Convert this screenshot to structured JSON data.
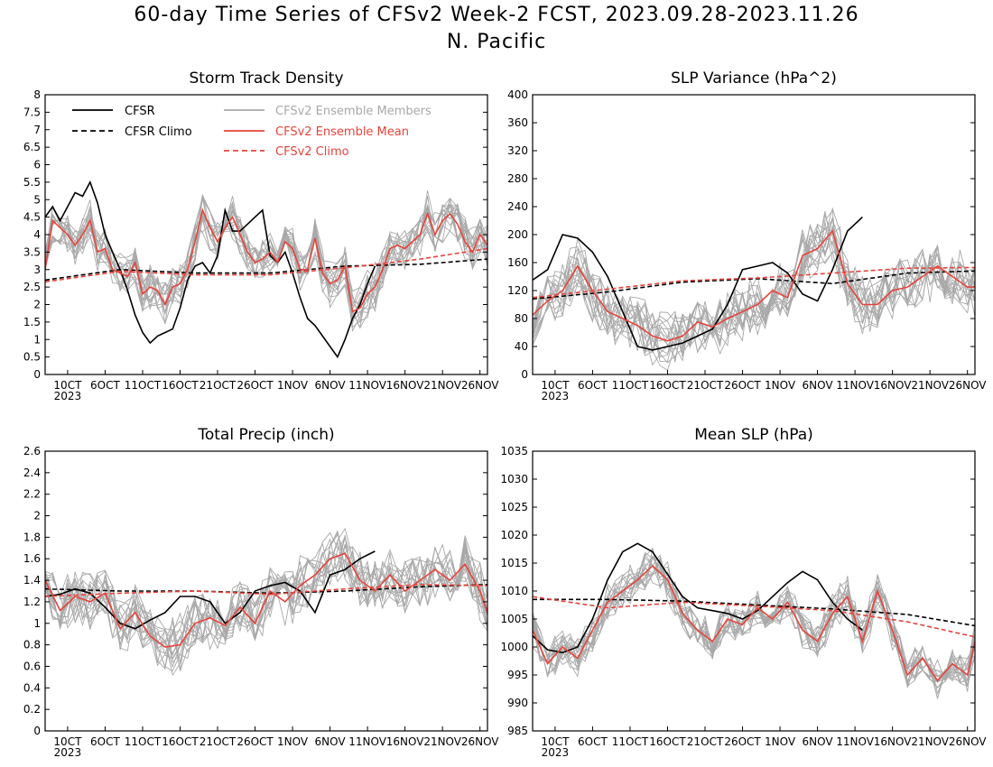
{
  "figure": {
    "title_line1": "60-day Time Series of CFSv2 Week-2 FCST, 2023.09.28-2023.11.26",
    "title_line2": "N. Pacific"
  },
  "colors": {
    "cfsr": "#000000",
    "cfsr_climo": "#000000",
    "ensemble_members": "#a8a8a8",
    "ensemble_mean": "#e8433a",
    "cfsv2_climo": "#e8433a"
  },
  "legend": {
    "cfsr": "CFSR",
    "cfsr_climo": "CFSR Climo",
    "members": "CFSv2 Ensemble Members",
    "ens_mean": "CFSv2 Ensemble Mean",
    "cfsv2_climo": "CFSv2 Climo"
  },
  "chart_data": [
    {
      "type": "line",
      "title": "Storm Track Density",
      "ylim": [
        0,
        8
      ],
      "yticks": [
        "0",
        "0.5",
        "1",
        "1.5",
        "2",
        "2.5",
        "3",
        "3.5",
        "4",
        "4.5",
        "5",
        "5.5",
        "6",
        "6.5",
        "7",
        "7.5",
        "8"
      ],
      "xticks": [
        "10CT",
        "6OCT",
        "11OCT",
        "16OCT",
        "21OCT",
        "26OCT",
        "1NOV",
        "6NOV",
        "11NOV",
        "16NOV",
        "21NOV",
        "26NOV"
      ],
      "year_label": "2023",
      "series": [
        {
          "name": "CFSR",
          "x": [
            0,
            1,
            2,
            3,
            4,
            5,
            6,
            7,
            8,
            9,
            10,
            11,
            12,
            13,
            14,
            15,
            16,
            17,
            18,
            19,
            20,
            21,
            22,
            23,
            24,
            25,
            26,
            27,
            28,
            29,
            30,
            31,
            32,
            33,
            34,
            35,
            36,
            37,
            38,
            39,
            40,
            41,
            42,
            43,
            44
          ],
          "values": [
            4.5,
            4.8,
            4.4,
            4.8,
            5.2,
            5.1,
            5.5,
            4.9,
            4.0,
            3.5,
            3.0,
            2.4,
            1.7,
            1.2,
            0.9,
            1.1,
            1.2,
            1.3,
            1.9,
            2.7,
            3.1,
            3.2,
            2.9,
            3.4,
            4.7,
            4.1,
            4.1,
            4.3,
            4.5,
            4.7,
            3.4,
            3.2,
            3.5,
            2.9,
            2.2,
            1.6,
            1.4,
            1.1,
            0.8,
            0.5,
            1.0,
            1.6,
            2.0,
            2.6,
            3.1
          ]
        },
        {
          "name": "CFSR Climo",
          "x": [
            0,
            10,
            20,
            30,
            40,
            50,
            59
          ],
          "values": [
            2.7,
            3.0,
            2.9,
            2.9,
            3.1,
            3.15,
            3.3
          ]
        },
        {
          "name": "CFSv2 Ensemble Mean",
          "x": [
            0,
            1,
            2,
            3,
            4,
            5,
            6,
            7,
            8,
            9,
            10,
            11,
            12,
            13,
            14,
            15,
            16,
            17,
            18,
            19,
            20,
            21,
            22,
            23,
            24,
            25,
            26,
            27,
            28,
            29,
            30,
            31,
            32,
            33,
            34,
            35,
            36,
            37,
            38,
            39,
            40,
            41,
            42,
            43,
            44,
            45,
            46,
            47,
            48,
            49,
            50,
            51,
            52,
            53,
            54,
            55,
            56,
            57,
            58,
            59
          ],
          "values": [
            3.0,
            4.4,
            4.2,
            4.0,
            3.7,
            4.0,
            4.4,
            3.5,
            3.6,
            3.0,
            2.9,
            2.8,
            3.2,
            2.3,
            2.5,
            2.4,
            2.0,
            2.5,
            2.6,
            3.0,
            3.8,
            4.7,
            4.2,
            3.8,
            4.2,
            4.5,
            4.0,
            3.5,
            3.2,
            3.3,
            3.5,
            3.2,
            3.8,
            3.6,
            3.0,
            3.0,
            3.9,
            2.9,
            2.6,
            2.7,
            3.1,
            1.8,
            1.9,
            2.3,
            2.5,
            3.0,
            3.6,
            3.7,
            3.6,
            3.8,
            4.0,
            4.6,
            4.0,
            4.4,
            4.6,
            4.3,
            3.8,
            3.5,
            4.0,
            3.7
          ]
        },
        {
          "name": "CFSv2 Climo",
          "x": [
            0,
            10,
            20,
            30,
            40,
            50,
            59
          ],
          "values": [
            2.65,
            2.95,
            2.85,
            2.85,
            3.05,
            3.3,
            3.6
          ]
        }
      ]
    },
    {
      "type": "line",
      "title": "SLP Variance (hPa^2)",
      "ylim": [
        0,
        400
      ],
      "yticks": [
        "0",
        "40",
        "80",
        "120",
        "160",
        "200",
        "240",
        "280",
        "320",
        "360",
        "400"
      ],
      "xticks": [
        "10CT",
        "6OCT",
        "11OCT",
        "16OCT",
        "21OCT",
        "26OCT",
        "1NOV",
        "6NOV",
        "11NOV",
        "16NOV",
        "21NOV",
        "26NOV"
      ],
      "year_label": "2023",
      "series": [
        {
          "name": "CFSR",
          "x": [
            0,
            2,
            4,
            6,
            8,
            10,
            12,
            14,
            16,
            18,
            20,
            22,
            24,
            26,
            28,
            30,
            32,
            34,
            36,
            38,
            40,
            42,
            44
          ],
          "values": [
            135,
            150,
            200,
            195,
            175,
            140,
            90,
            40,
            35,
            40,
            45,
            55,
            65,
            100,
            150,
            155,
            160,
            145,
            115,
            105,
            150,
            205,
            225
          ]
        },
        {
          "name": "CFSR Climo",
          "x": [
            0,
            10,
            20,
            30,
            40,
            50,
            59
          ],
          "values": [
            108,
            118,
            132,
            137,
            130,
            145,
            148
          ]
        },
        {
          "name": "CFSv2 Ensemble Mean",
          "x": [
            0,
            2,
            4,
            6,
            8,
            10,
            12,
            14,
            16,
            18,
            20,
            22,
            24,
            26,
            28,
            30,
            32,
            34,
            36,
            38,
            40,
            42,
            44,
            46,
            48,
            50,
            52,
            54,
            56,
            58,
            59
          ],
          "values": [
            85,
            105,
            120,
            155,
            120,
            90,
            80,
            70,
            55,
            48,
            55,
            75,
            68,
            80,
            90,
            100,
            120,
            110,
            170,
            180,
            205,
            130,
            100,
            100,
            120,
            125,
            140,
            155,
            140,
            125,
            125
          ]
        },
        {
          "name": "CFSv2 Climo",
          "x": [
            0,
            10,
            20,
            30,
            40,
            50,
            59
          ],
          "values": [
            110,
            122,
            134,
            138,
            145,
            152,
            153
          ]
        }
      ]
    },
    {
      "type": "line",
      "title": "Total Precip (inch)",
      "ylim": [
        0,
        2.6
      ],
      "yticks": [
        "0",
        "0.2",
        "0.4",
        "0.6",
        "0.8",
        "1",
        "1.2",
        "1.4",
        "1.6",
        "1.8",
        "2",
        "2.2",
        "2.4",
        "2.6"
      ],
      "xticks": [
        "10CT",
        "6OCT",
        "11OCT",
        "16OCT",
        "21OCT",
        "26OCT",
        "1NOV",
        "6NOV",
        "11NOV",
        "16NOV",
        "21NOV",
        "26NOV"
      ],
      "year_label": "2023",
      "series": [
        {
          "name": "CFSR",
          "x": [
            0,
            2,
            4,
            6,
            8,
            10,
            12,
            14,
            16,
            18,
            20,
            22,
            24,
            26,
            28,
            30,
            32,
            34,
            36,
            38,
            40,
            42,
            44
          ],
          "values": [
            1.25,
            1.27,
            1.32,
            1.28,
            1.15,
            1.0,
            0.95,
            1.03,
            1.1,
            1.25,
            1.25,
            1.2,
            1.0,
            1.1,
            1.3,
            1.35,
            1.38,
            1.3,
            1.1,
            1.45,
            1.5,
            1.6,
            1.67
          ]
        },
        {
          "name": "CFSR Climo",
          "x": [
            0,
            10,
            20,
            30,
            40,
            50,
            59
          ],
          "values": [
            1.32,
            1.3,
            1.3,
            1.28,
            1.3,
            1.34,
            1.36
          ]
        },
        {
          "name": "CFSv2 Ensemble Mean",
          "x": [
            0,
            2,
            4,
            6,
            8,
            10,
            12,
            14,
            16,
            18,
            20,
            22,
            24,
            26,
            28,
            30,
            32,
            34,
            36,
            38,
            40,
            42,
            44,
            46,
            48,
            50,
            52,
            54,
            56,
            58,
            59
          ],
          "values": [
            1.4,
            1.12,
            1.25,
            1.2,
            1.28,
            0.95,
            1.1,
            0.88,
            0.78,
            0.8,
            1.0,
            1.05,
            0.98,
            1.15,
            1.0,
            1.3,
            1.2,
            1.35,
            1.45,
            1.6,
            1.65,
            1.4,
            1.3,
            1.45,
            1.3,
            1.4,
            1.5,
            1.4,
            1.55,
            1.3,
            1.1
          ]
        },
        {
          "name": "CFSv2 Climo",
          "x": [
            0,
            10,
            20,
            30,
            40,
            50,
            59
          ],
          "values": [
            1.25,
            1.28,
            1.3,
            1.27,
            1.32,
            1.36,
            1.35
          ]
        }
      ]
    },
    {
      "type": "line",
      "title": "Mean SLP (hPa)",
      "ylim": [
        985,
        1035
      ],
      "yticks": [
        "985",
        "990",
        "995",
        "1000",
        "1005",
        "1010",
        "1015",
        "1020",
        "1025",
        "1030",
        "1035"
      ],
      "xticks": [
        "10CT",
        "6OCT",
        "11OCT",
        "16OCT",
        "21OCT",
        "26OCT",
        "1NOV",
        "6NOV",
        "11NOV",
        "16NOV",
        "21NOV",
        "26NOV"
      ],
      "year_label": "2023",
      "series": [
        {
          "name": "CFSR",
          "x": [
            0,
            2,
            4,
            6,
            8,
            10,
            12,
            14,
            16,
            18,
            20,
            22,
            24,
            26,
            28,
            30,
            32,
            34,
            36,
            38,
            40,
            42,
            44
          ],
          "values": [
            1002,
            999.5,
            999,
            1000,
            1005,
            1012,
            1017,
            1018.5,
            1017,
            1013,
            1009,
            1007,
            1006.5,
            1006,
            1005,
            1006.5,
            1009,
            1011.5,
            1013.5,
            1012,
            1008,
            1005,
            1003
          ]
        },
        {
          "name": "CFSR Climo",
          "x": [
            0,
            10,
            20,
            30,
            40,
            50,
            59
          ],
          "values": [
            1008.5,
            1008.5,
            1008.2,
            1007.5,
            1006.8,
            1005.8,
            1003.8
          ]
        },
        {
          "name": "CFSv2 Ensemble Mean",
          "x": [
            0,
            2,
            4,
            6,
            8,
            10,
            12,
            14,
            16,
            18,
            20,
            22,
            24,
            26,
            28,
            30,
            32,
            34,
            36,
            38,
            40,
            42,
            44,
            46,
            48,
            50,
            52,
            54,
            56,
            58,
            59
          ],
          "values": [
            1003,
            997,
            1000,
            998,
            1003,
            1008,
            1010,
            1012,
            1014.5,
            1012,
            1006,
            1003,
            1001,
            1005,
            1004,
            1007,
            1005,
            1008,
            1003,
            1001,
            1006,
            1009,
            1001,
            1010,
            1003,
            995,
            998,
            994,
            997,
            995,
            1001
          ]
        },
        {
          "name": "CFSv2 Climo",
          "x": [
            0,
            10,
            20,
            30,
            40,
            50,
            59
          ],
          "values": [
            1009,
            1007,
            1008,
            1007.3,
            1006.5,
            1004.5,
            1001.8
          ]
        }
      ]
    }
  ]
}
